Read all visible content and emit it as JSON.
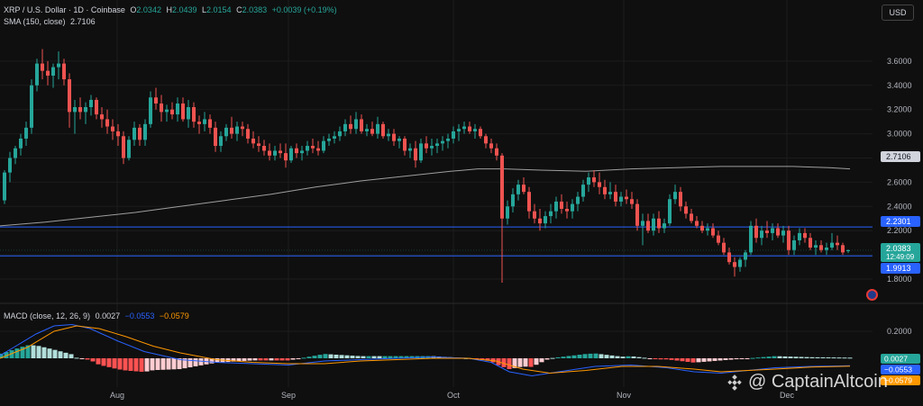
{
  "header": {
    "symbol": "XRP / U.S. Dollar · 1D · Coinbase",
    "o_label": "O",
    "o": "2.0342",
    "h_label": "H",
    "h": "2.0439",
    "l_label": "L",
    "l": "2.0154",
    "c_label": "C",
    "c": "2.0383",
    "change": "+0.0039 (+0.19%)",
    "sma_label": "SMA (150, close)",
    "sma": "2.7106",
    "currency": "USD"
  },
  "macd_legend": {
    "label": "MACD (close, 12, 26, 9)",
    "hist": "0.0027",
    "macd": "−0.0553",
    "signal": "−0.0579"
  },
  "watermark": "@ CaptainAltcoin",
  "colors": {
    "up": "#26a69a",
    "down": "#ef5350",
    "sma": "#9e9e9e",
    "hline": "#2962ff",
    "macd": "#2962ff",
    "signal": "#ff9800",
    "bg": "#0f0f0f"
  },
  "chart_data": {
    "type": "candlestick",
    "price_ticks": [
      1.8,
      2.0,
      2.2,
      2.4,
      2.6,
      2.8,
      3.0,
      3.2,
      3.4,
      3.6
    ],
    "macd_ticks": [
      0.2
    ],
    "x_labels": [
      "Aug",
      "Sep",
      "Oct",
      "Nov",
      "Dec"
    ],
    "horizontal_lines": [
      2.2301,
      1.9913
    ],
    "price_badges": [
      {
        "value": "2.7106",
        "kind": "sma"
      },
      {
        "value": "2.2301",
        "kind": "line"
      },
      {
        "value": "2.0383",
        "kind": "last",
        "countdown": "12:49:09"
      },
      {
        "value": "1.9913",
        "kind": "line"
      }
    ],
    "macd_badges": [
      {
        "value": "0.0027",
        "kind": "hist"
      },
      {
        "value": "−0.0553",
        "kind": "macd"
      },
      {
        "value": "−0.0579",
        "kind": "signal"
      }
    ],
    "sma_series": [
      [
        0,
        2.24
      ],
      [
        50,
        2.27
      ],
      [
        100,
        2.31
      ],
      [
        150,
        2.35
      ],
      [
        200,
        2.4
      ],
      [
        250,
        2.45
      ],
      [
        300,
        2.5
      ],
      [
        350,
        2.56
      ],
      [
        400,
        2.61
      ],
      [
        450,
        2.65
      ],
      [
        500,
        2.69
      ],
      [
        530,
        2.71
      ],
      [
        560,
        2.71
      ],
      [
        600,
        2.7
      ],
      [
        650,
        2.69
      ],
      [
        700,
        2.71
      ],
      [
        750,
        2.72
      ],
      [
        800,
        2.73
      ],
      [
        850,
        2.73
      ],
      [
        880,
        2.73
      ],
      [
        920,
        2.72
      ],
      [
        943,
        2.71
      ]
    ],
    "macd_line": [
      [
        0,
        0.02
      ],
      [
        20,
        0.1
      ],
      [
        40,
        0.18
      ],
      [
        60,
        0.24
      ],
      [
        80,
        0.25
      ],
      [
        100,
        0.22
      ],
      [
        130,
        0.13
      ],
      [
        160,
        0.05
      ],
      [
        200,
        -0.01
      ],
      [
        240,
        -0.03
      ],
      [
        280,
        -0.04
      ],
      [
        320,
        -0.05
      ],
      [
        360,
        -0.02
      ],
      [
        400,
        -0.01
      ],
      [
        440,
        0.0
      ],
      [
        480,
        0.01
      ],
      [
        520,
        0.0
      ],
      [
        545,
        -0.03
      ],
      [
        565,
        -0.1
      ],
      [
        590,
        -0.13
      ],
      [
        620,
        -0.1
      ],
      [
        660,
        -0.06
      ],
      [
        700,
        -0.05
      ],
      [
        740,
        -0.07
      ],
      [
        770,
        -0.1
      ],
      [
        800,
        -0.11
      ],
      [
        830,
        -0.09
      ],
      [
        860,
        -0.07
      ],
      [
        900,
        -0.06
      ],
      [
        943,
        -0.055
      ]
    ],
    "signal_line": [
      [
        0,
        0.0
      ],
      [
        30,
        0.08
      ],
      [
        60,
        0.2
      ],
      [
        85,
        0.24
      ],
      [
        110,
        0.22
      ],
      [
        140,
        0.16
      ],
      [
        170,
        0.09
      ],
      [
        200,
        0.04
      ],
      [
        240,
        -0.01
      ],
      [
        280,
        -0.03
      ],
      [
        320,
        -0.04
      ],
      [
        360,
        -0.04
      ],
      [
        400,
        -0.02
      ],
      [
        440,
        -0.01
      ],
      [
        480,
        0.0
      ],
      [
        520,
        0.0
      ],
      [
        550,
        -0.02
      ],
      [
        580,
        -0.08
      ],
      [
        610,
        -0.11
      ],
      [
        650,
        -0.09
      ],
      [
        690,
        -0.06
      ],
      [
        730,
        -0.06
      ],
      [
        770,
        -0.08
      ],
      [
        800,
        -0.1
      ],
      [
        830,
        -0.09
      ],
      [
        860,
        -0.08
      ],
      [
        900,
        -0.065
      ],
      [
        943,
        -0.058
      ]
    ],
    "candles": [
      [
        5,
        2.45,
        2.7,
        2.42,
        2.68
      ],
      [
        11,
        2.68,
        2.85,
        2.6,
        2.8
      ],
      [
        17,
        2.8,
        2.9,
        2.75,
        2.88
      ],
      [
        23,
        2.88,
        3.0,
        2.82,
        2.96
      ],
      [
        29,
        2.96,
        3.1,
        2.9,
        3.05
      ],
      [
        35,
        3.05,
        3.45,
        3.0,
        3.4
      ],
      [
        41,
        3.4,
        3.62,
        3.35,
        3.58
      ],
      [
        47,
        3.58,
        3.7,
        3.45,
        3.52
      ],
      [
        53,
        3.52,
        3.6,
        3.4,
        3.48
      ],
      [
        59,
        3.48,
        3.58,
        3.38,
        3.55
      ],
      [
        65,
        3.55,
        3.68,
        3.45,
        3.58
      ],
      [
        71,
        3.58,
        3.62,
        3.4,
        3.45
      ],
      [
        77,
        3.45,
        3.5,
        3.05,
        3.18
      ],
      [
        83,
        3.18,
        3.28,
        3.0,
        3.22
      ],
      [
        89,
        3.22,
        3.3,
        3.12,
        3.18
      ],
      [
        95,
        3.18,
        3.26,
        3.08,
        3.22
      ],
      [
        101,
        3.22,
        3.32,
        3.15,
        3.28
      ],
      [
        107,
        3.28,
        3.3,
        3.12,
        3.16
      ],
      [
        113,
        3.16,
        3.22,
        3.05,
        3.12
      ],
      [
        119,
        3.12,
        3.2,
        3.0,
        3.06
      ],
      [
        125,
        3.06,
        3.12,
        2.95,
        3.02
      ],
      [
        131,
        3.02,
        3.08,
        2.9,
        2.98
      ],
      [
        137,
        2.98,
        3.02,
        2.75,
        2.8
      ],
      [
        143,
        2.8,
        2.98,
        2.78,
        2.95
      ],
      [
        149,
        2.95,
        3.1,
        2.9,
        3.05
      ],
      [
        155,
        3.05,
        3.08,
        2.9,
        2.95
      ],
      [
        161,
        2.95,
        3.12,
        2.9,
        3.08
      ],
      [
        167,
        3.08,
        3.35,
        3.05,
        3.3
      ],
      [
        173,
        3.3,
        3.38,
        3.2,
        3.25
      ],
      [
        179,
        3.25,
        3.32,
        3.1,
        3.18
      ],
      [
        185,
        3.18,
        3.24,
        3.1,
        3.2
      ],
      [
        191,
        3.2,
        3.26,
        3.12,
        3.16
      ],
      [
        197,
        3.16,
        3.3,
        3.1,
        3.25
      ],
      [
        203,
        3.25,
        3.3,
        3.1,
        3.12
      ],
      [
        209,
        3.12,
        3.28,
        3.05,
        3.22
      ],
      [
        215,
        3.22,
        3.26,
        3.05,
        3.1
      ],
      [
        221,
        3.1,
        3.15,
        3.0,
        3.08
      ],
      [
        227,
        3.08,
        3.18,
        3.02,
        3.12
      ],
      [
        233,
        3.12,
        3.16,
        3.0,
        3.05
      ],
      [
        239,
        3.05,
        3.1,
        2.85,
        2.9
      ],
      [
        245,
        2.9,
        3.02,
        2.85,
        2.98
      ],
      [
        251,
        2.98,
        3.08,
        2.94,
        3.05
      ],
      [
        257,
        3.05,
        3.14,
        2.96,
        3.0
      ],
      [
        263,
        3.0,
        3.1,
        2.94,
        3.06
      ],
      [
        269,
        3.06,
        3.1,
        2.98,
        3.04
      ],
      [
        275,
        3.04,
        3.08,
        2.92,
        2.96
      ],
      [
        281,
        2.96,
        3.02,
        2.88,
        2.92
      ],
      [
        287,
        2.92,
        2.98,
        2.85,
        2.9
      ],
      [
        293,
        2.9,
        2.95,
        2.82,
        2.86
      ],
      [
        299,
        2.86,
        2.92,
        2.78,
        2.82
      ],
      [
        305,
        2.82,
        2.9,
        2.78,
        2.86
      ],
      [
        311,
        2.86,
        2.92,
        2.8,
        2.84
      ],
      [
        317,
        2.84,
        2.92,
        2.72,
        2.78
      ],
      [
        323,
        2.78,
        2.9,
        2.76,
        2.88
      ],
      [
        329,
        2.88,
        2.92,
        2.8,
        2.84
      ],
      [
        335,
        2.84,
        2.9,
        2.78,
        2.86
      ],
      [
        341,
        2.86,
        2.94,
        2.82,
        2.9
      ],
      [
        347,
        2.9,
        2.96,
        2.84,
        2.88
      ],
      [
        353,
        2.88,
        2.94,
        2.82,
        2.86
      ],
      [
        359,
        2.86,
        2.98,
        2.84,
        2.94
      ],
      [
        365,
        2.94,
        3.0,
        2.9,
        2.96
      ],
      [
        371,
        2.96,
        3.02,
        2.92,
        2.98
      ],
      [
        377,
        2.98,
        3.06,
        2.94,
        3.02
      ],
      [
        383,
        3.02,
        3.12,
        2.98,
        3.08
      ],
      [
        389,
        3.08,
        3.15,
        3.0,
        3.04
      ],
      [
        395,
        3.04,
        3.18,
        3.0,
        3.12
      ],
      [
        401,
        3.12,
        3.16,
        3.0,
        3.02
      ],
      [
        407,
        3.02,
        3.08,
        2.98,
        3.04
      ],
      [
        413,
        3.04,
        3.1,
        2.98,
        3.0
      ],
      [
        419,
        3.0,
        3.14,
        2.96,
        3.08
      ],
      [
        425,
        3.08,
        3.1,
        2.96,
        2.98
      ],
      [
        431,
        2.98,
        3.04,
        2.94,
        3.0
      ],
      [
        437,
        3.0,
        3.04,
        2.9,
        2.94
      ],
      [
        443,
        2.94,
        2.98,
        2.88,
        2.96
      ],
      [
        449,
        2.96,
        2.98,
        2.82,
        2.86
      ],
      [
        455,
        2.86,
        2.92,
        2.8,
        2.88
      ],
      [
        461,
        2.88,
        2.94,
        2.72,
        2.78
      ],
      [
        467,
        2.78,
        2.96,
        2.76,
        2.92
      ],
      [
        473,
        2.92,
        2.98,
        2.84,
        2.88
      ],
      [
        479,
        2.88,
        2.96,
        2.82,
        2.9
      ],
      [
        485,
        2.9,
        2.96,
        2.84,
        2.92
      ],
      [
        491,
        2.92,
        2.98,
        2.86,
        2.94
      ],
      [
        497,
        2.94,
        3.0,
        2.88,
        2.96
      ],
      [
        503,
        2.96,
        3.06,
        2.92,
        3.02
      ],
      [
        509,
        3.02,
        3.08,
        2.94,
        3.04
      ],
      [
        515,
        3.04,
        3.1,
        3.0,
        3.06
      ],
      [
        521,
        3.06,
        3.1,
        3.0,
        3.02
      ],
      [
        527,
        3.02,
        3.08,
        2.96,
        3.04
      ],
      [
        533,
        3.04,
        3.06,
        2.96,
        2.98
      ],
      [
        539,
        2.98,
        3.0,
        2.88,
        2.92
      ],
      [
        545,
        2.92,
        2.96,
        2.84,
        2.88
      ],
      [
        551,
        2.88,
        2.92,
        2.78,
        2.82
      ],
      [
        557,
        2.82,
        2.84,
        1.77,
        2.3
      ],
      [
        563,
        2.3,
        2.45,
        2.25,
        2.4
      ],
      [
        569,
        2.4,
        2.55,
        2.35,
        2.5
      ],
      [
        575,
        2.5,
        2.62,
        2.45,
        2.58
      ],
      [
        581,
        2.58,
        2.64,
        2.5,
        2.52
      ],
      [
        587,
        2.52,
        2.56,
        2.3,
        2.36
      ],
      [
        593,
        2.36,
        2.42,
        2.26,
        2.3
      ],
      [
        599,
        2.3,
        2.38,
        2.2,
        2.26
      ],
      [
        605,
        2.26,
        2.36,
        2.22,
        2.32
      ],
      [
        611,
        2.32,
        2.42,
        2.26,
        2.36
      ],
      [
        617,
        2.36,
        2.48,
        2.3,
        2.44
      ],
      [
        623,
        2.44,
        2.5,
        2.34,
        2.38
      ],
      [
        629,
        2.38,
        2.44,
        2.3,
        2.36
      ],
      [
        635,
        2.36,
        2.46,
        2.3,
        2.42
      ],
      [
        641,
        2.42,
        2.52,
        2.36,
        2.48
      ],
      [
        647,
        2.48,
        2.62,
        2.44,
        2.58
      ],
      [
        653,
        2.58,
        2.68,
        2.52,
        2.64
      ],
      [
        659,
        2.64,
        2.7,
        2.56,
        2.6
      ],
      [
        665,
        2.6,
        2.68,
        2.5,
        2.56
      ],
      [
        671,
        2.56,
        2.62,
        2.46,
        2.5
      ],
      [
        677,
        2.5,
        2.6,
        2.46,
        2.52
      ],
      [
        683,
        2.52,
        2.58,
        2.4,
        2.44
      ],
      [
        689,
        2.44,
        2.52,
        2.4,
        2.48
      ],
      [
        695,
        2.48,
        2.54,
        2.42,
        2.46
      ],
      [
        701,
        2.46,
        2.52,
        2.38,
        2.42
      ],
      [
        707,
        2.42,
        2.46,
        2.2,
        2.24
      ],
      [
        713,
        2.24,
        2.34,
        2.08,
        2.28
      ],
      [
        719,
        2.28,
        2.34,
        2.18,
        2.2
      ],
      [
        725,
        2.2,
        2.34,
        2.16,
        2.3
      ],
      [
        731,
        2.3,
        2.36,
        2.18,
        2.22
      ],
      [
        737,
        2.22,
        2.3,
        2.18,
        2.26
      ],
      [
        743,
        2.26,
        2.5,
        2.24,
        2.46
      ],
      [
        749,
        2.46,
        2.58,
        2.42,
        2.52
      ],
      [
        755,
        2.52,
        2.56,
        2.36,
        2.4
      ],
      [
        761,
        2.4,
        2.44,
        2.3,
        2.34
      ],
      [
        767,
        2.34,
        2.38,
        2.26,
        2.28
      ],
      [
        773,
        2.28,
        2.32,
        2.22,
        2.24
      ],
      [
        779,
        2.24,
        2.28,
        2.18,
        2.2
      ],
      [
        785,
        2.2,
        2.26,
        2.16,
        2.22
      ],
      [
        791,
        2.22,
        2.26,
        2.14,
        2.16
      ],
      [
        797,
        2.16,
        2.2,
        2.08,
        2.1
      ],
      [
        803,
        2.1,
        2.14,
        2.0,
        2.02
      ],
      [
        809,
        2.02,
        2.06,
        1.92,
        1.94
      ],
      [
        815,
        1.94,
        1.98,
        1.82,
        1.9
      ],
      [
        821,
        1.9,
        1.98,
        1.86,
        1.96
      ],
      [
        827,
        1.96,
        2.04,
        1.9,
        2.02
      ],
      [
        833,
        2.02,
        2.28,
        2.0,
        2.24
      ],
      [
        839,
        2.24,
        2.3,
        2.1,
        2.14
      ],
      [
        845,
        2.14,
        2.24,
        2.08,
        2.2
      ],
      [
        851,
        2.2,
        2.28,
        2.14,
        2.18
      ],
      [
        857,
        2.18,
        2.26,
        2.12,
        2.22
      ],
      [
        863,
        2.22,
        2.26,
        2.14,
        2.16
      ],
      [
        869,
        2.16,
        2.24,
        2.1,
        2.2
      ],
      [
        875,
        2.2,
        2.24,
        2.0,
        2.04
      ],
      [
        881,
        2.04,
        2.16,
        2.0,
        2.12
      ],
      [
        887,
        2.12,
        2.22,
        2.08,
        2.18
      ],
      [
        893,
        2.18,
        2.22,
        2.1,
        2.14
      ],
      [
        899,
        2.14,
        2.18,
        2.04,
        2.06
      ],
      [
        905,
        2.06,
        2.12,
        2.0,
        2.08
      ],
      [
        911,
        2.08,
        2.12,
        2.02,
        2.04
      ],
      [
        917,
        2.04,
        2.1,
        2.0,
        2.06
      ],
      [
        923,
        2.06,
        2.18,
        2.04,
        2.1
      ],
      [
        929,
        2.1,
        2.16,
        2.04,
        2.08
      ],
      [
        935,
        2.08,
        2.1,
        2.0,
        2.02
      ],
      [
        941,
        2.034,
        2.044,
        2.015,
        2.038
      ]
    ]
  }
}
